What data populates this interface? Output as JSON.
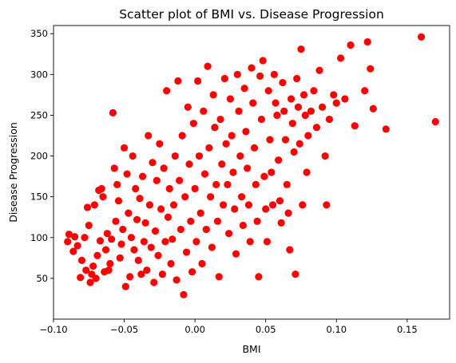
{
  "chart_data": {
    "type": "scatter",
    "title": "Scatter plot of BMI vs. Disease Progression",
    "xlabel": "BMI",
    "ylabel": "Disease Progression",
    "xlim": [
      -0.1,
      0.18
    ],
    "ylim": [
      0,
      360
    ],
    "xticks": [
      -0.1,
      -0.05,
      0.0,
      0.05,
      0.1,
      0.15
    ],
    "xtick_labels": [
      "−0.10",
      "−0.05",
      "0.00",
      "0.05",
      "0.10",
      "0.15"
    ],
    "yticks": [
      50,
      100,
      150,
      200,
      250,
      300,
      350
    ],
    "ytick_labels": [
      "50",
      "100",
      "150",
      "200",
      "250",
      "300",
      "350"
    ],
    "grid": false,
    "series": [
      {
        "color": "#ff0000",
        "marker": "circle",
        "points": [
          [
            -0.09,
            95
          ],
          [
            -0.089,
            104
          ],
          [
            -0.086,
            83
          ],
          [
            -0.085,
            101
          ],
          [
            -0.083,
            90
          ],
          [
            -0.081,
            51
          ],
          [
            -0.08,
            72
          ],
          [
            -0.078,
            100
          ],
          [
            -0.077,
            60
          ],
          [
            -0.076,
            137
          ],
          [
            -0.075,
            115
          ],
          [
            -0.074,
            45
          ],
          [
            -0.073,
            55
          ],
          [
            -0.072,
            65
          ],
          [
            -0.071,
            140
          ],
          [
            -0.07,
            50
          ],
          [
            -0.069,
            78
          ],
          [
            -0.068,
            158
          ],
          [
            -0.067,
            96
          ],
          [
            -0.066,
            160
          ],
          [
            -0.065,
            150
          ],
          [
            -0.064,
            58
          ],
          [
            -0.063,
            85
          ],
          [
            -0.062,
            105
          ],
          [
            -0.061,
            60
          ],
          [
            -0.06,
            68
          ],
          [
            -0.059,
            98
          ],
          [
            -0.058,
            253
          ],
          [
            -0.057,
            185
          ],
          [
            -0.056,
            120
          ],
          [
            -0.055,
            165
          ],
          [
            -0.054,
            145
          ],
          [
            -0.053,
            75
          ],
          [
            -0.052,
            92
          ],
          [
            -0.051,
            110
          ],
          [
            -0.05,
            210
          ],
          [
            -0.049,
            40
          ],
          [
            -0.048,
            178
          ],
          [
            -0.047,
            130
          ],
          [
            -0.046,
            52
          ],
          [
            -0.045,
            100
          ],
          [
            -0.044,
            200
          ],
          [
            -0.043,
            85
          ],
          [
            -0.042,
            160
          ],
          [
            -0.041,
            122
          ],
          [
            -0.04,
            72
          ],
          [
            -0.039,
            148
          ],
          [
            -0.038,
            55
          ],
          [
            -0.037,
            175
          ],
          [
            -0.036,
            95
          ],
          [
            -0.035,
            118
          ],
          [
            -0.034,
            60
          ],
          [
            -0.033,
            225
          ],
          [
            -0.032,
            140
          ],
          [
            -0.031,
            88
          ],
          [
            -0.03,
            192
          ],
          [
            -0.029,
            45
          ],
          [
            -0.028,
            108
          ],
          [
            -0.027,
            170
          ],
          [
            -0.026,
            78
          ],
          [
            -0.025,
            215
          ],
          [
            -0.024,
            135
          ],
          [
            -0.023,
            55
          ],
          [
            -0.022,
            185
          ],
          [
            -0.021,
            95
          ],
          [
            -0.02,
            280
          ],
          [
            -0.019,
            125
          ],
          [
            -0.018,
            160
          ],
          [
            -0.017,
            68
          ],
          [
            -0.016,
            98
          ],
          [
            -0.015,
            140
          ],
          [
            -0.014,
            200
          ],
          [
            -0.013,
            48
          ],
          [
            -0.012,
            292
          ],
          [
            -0.011,
            170
          ],
          [
            -0.01,
            110
          ],
          [
            -0.009,
            225
          ],
          [
            -0.008,
            30
          ],
          [
            -0.007,
            150
          ],
          [
            -0.006,
            82
          ],
          [
            -0.005,
            260
          ],
          [
            -0.004,
            190
          ],
          [
            -0.003,
            120
          ],
          [
            -0.002,
            58
          ],
          [
            -0.001,
            240
          ],
          [
            0.0,
            160
          ],
          [
            0.001,
            95
          ],
          [
            0.002,
            292
          ],
          [
            0.003,
            200
          ],
          [
            0.004,
            130
          ],
          [
            0.005,
            68
          ],
          [
            0.006,
            255
          ],
          [
            0.007,
            178
          ],
          [
            0.008,
            110
          ],
          [
            0.009,
            310
          ],
          [
            0.01,
            210
          ],
          [
            0.011,
            150
          ],
          [
            0.012,
            88
          ],
          [
            0.013,
            275
          ],
          [
            0.014,
            235
          ],
          [
            0.015,
            165
          ],
          [
            0.016,
            120
          ],
          [
            0.017,
            52
          ],
          [
            0.018,
            245
          ],
          [
            0.019,
            190
          ],
          [
            0.02,
            140
          ],
          [
            0.021,
            295
          ],
          [
            0.022,
            215
          ],
          [
            0.023,
            165
          ],
          [
            0.024,
            105
          ],
          [
            0.025,
            270
          ],
          [
            0.026,
            225
          ],
          [
            0.027,
            180
          ],
          [
            0.028,
            135
          ],
          [
            0.029,
            80
          ],
          [
            0.03,
            300
          ],
          [
            0.031,
            255
          ],
          [
            0.032,
            200
          ],
          [
            0.033,
            150
          ],
          [
            0.034,
            115
          ],
          [
            0.035,
            283
          ],
          [
            0.036,
            230
          ],
          [
            0.037,
            185
          ],
          [
            0.038,
            140
          ],
          [
            0.039,
            95
          ],
          [
            0.04,
            308
          ],
          [
            0.041,
            265
          ],
          [
            0.042,
            210
          ],
          [
            0.043,
            165
          ],
          [
            0.044,
            120
          ],
          [
            0.045,
            52
          ],
          [
            0.046,
            298
          ],
          [
            0.047,
            245
          ],
          [
            0.048,
            317
          ],
          [
            0.049,
            175
          ],
          [
            0.05,
            135
          ],
          [
            0.051,
            95
          ],
          [
            0.052,
            280
          ],
          [
            0.053,
            220
          ],
          [
            0.054,
            180
          ],
          [
            0.055,
            140
          ],
          [
            0.056,
            300
          ],
          [
            0.057,
            265
          ],
          [
            0.058,
            250
          ],
          [
            0.059,
            195
          ],
          [
            0.06,
            145
          ],
          [
            0.061,
            118
          ],
          [
            0.062,
            290
          ],
          [
            0.063,
            255
          ],
          [
            0.064,
            220
          ],
          [
            0.065,
            165
          ],
          [
            0.066,
            130
          ],
          [
            0.067,
            85
          ],
          [
            0.068,
            270
          ],
          [
            0.069,
            240
          ],
          [
            0.07,
            205
          ],
          [
            0.071,
            55
          ],
          [
            0.072,
            295
          ],
          [
            0.073,
            260
          ],
          [
            0.074,
            215
          ],
          [
            0.075,
            331
          ],
          [
            0.076,
            140
          ],
          [
            0.077,
            275
          ],
          [
            0.078,
            250
          ],
          [
            0.079,
            180
          ],
          [
            0.08,
            225
          ],
          [
            0.082,
            255
          ],
          [
            0.084,
            280
          ],
          [
            0.086,
            235
          ],
          [
            0.088,
            305
          ],
          [
            0.09,
            260
          ],
          [
            0.092,
            200
          ],
          [
            0.093,
            140
          ],
          [
            0.095,
            245
          ],
          [
            0.098,
            275
          ],
          [
            0.1,
            265
          ],
          [
            0.103,
            320
          ],
          [
            0.106,
            270
          ],
          [
            0.11,
            336
          ],
          [
            0.113,
            237
          ],
          [
            0.12,
            280
          ],
          [
            0.122,
            340
          ],
          [
            0.124,
            307
          ],
          [
            0.126,
            258
          ],
          [
            0.135,
            233
          ],
          [
            0.16,
            346
          ],
          [
            0.17,
            242
          ]
        ]
      }
    ]
  }
}
